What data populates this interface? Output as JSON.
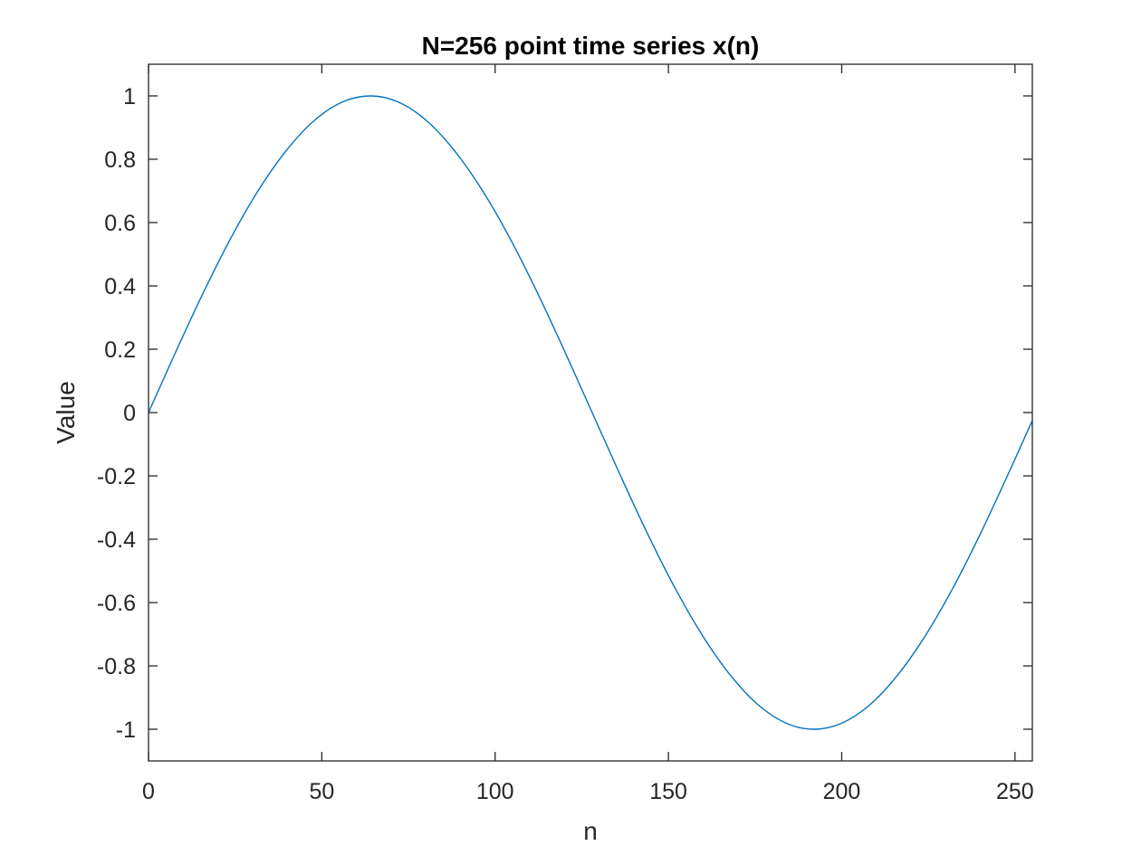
{
  "chart_data": {
    "type": "line",
    "title": "N=256 point time series x(n)",
    "xlabel": "n",
    "ylabel": "Value",
    "xlim": [
      0,
      255
    ],
    "ylim": [
      -1.1,
      1.1
    ],
    "xticks": [
      0,
      50,
      100,
      150,
      200,
      250
    ],
    "xtick_labels": [
      "0",
      "50",
      "100",
      "150",
      "200",
      "250"
    ],
    "yticks": [
      -1,
      -0.8,
      -0.6,
      -0.4,
      -0.2,
      0,
      0.2,
      0.4,
      0.6,
      0.8,
      1
    ],
    "ytick_labels": [
      "-1",
      "-0.8",
      "-0.6",
      "-0.4",
      "-0.2",
      "0",
      "0.2",
      "0.4",
      "0.6",
      "0.8",
      "1"
    ],
    "grid": false,
    "box": true,
    "series": [
      {
        "color": "#0072BD",
        "x": [
          0,
          8,
          16,
          24,
          32,
          40,
          48,
          56,
          64,
          72,
          80,
          88,
          96,
          104,
          112,
          120,
          128,
          136,
          144,
          152,
          160,
          168,
          176,
          184,
          192,
          200,
          208,
          216,
          224,
          232,
          240,
          248,
          255
        ],
        "y": [
          0,
          0.195,
          0.383,
          0.556,
          0.707,
          0.831,
          0.924,
          0.981,
          1.0,
          0.981,
          0.924,
          0.831,
          0.707,
          0.556,
          0.383,
          0.195,
          0,
          -0.195,
          -0.383,
          -0.556,
          -0.707,
          -0.831,
          -0.924,
          -0.981,
          -1.0,
          -0.981,
          -0.924,
          -0.831,
          -0.707,
          -0.556,
          -0.383,
          -0.195,
          -0.025
        ]
      }
    ]
  }
}
